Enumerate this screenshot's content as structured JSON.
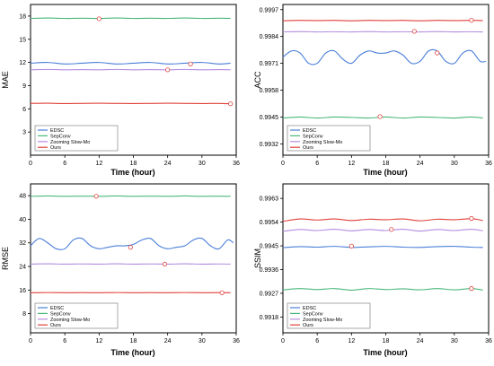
{
  "chart_data": [
    {
      "type": "line",
      "panel": "top-left",
      "ylabel": "MAE",
      "xlabel": "Time (hour)",
      "xlim": [
        0,
        36
      ],
      "ylim": [
        0,
        19.5
      ],
      "xticks": [
        0,
        6,
        12,
        18,
        24,
        30,
        36
      ],
      "yticks": [
        3,
        6,
        9,
        12,
        15,
        18
      ],
      "ytick_labels": [
        "3",
        "6",
        "9",
        "12",
        "15",
        "18"
      ],
      "legend_position": "bottom-left",
      "series": [
        {
          "name": "EDSC",
          "color": "#4a7fd8",
          "x": [
            0,
            3,
            6,
            9,
            12,
            15,
            18,
            21,
            24,
            27,
            30,
            33,
            35
          ],
          "y": [
            11.9,
            12.0,
            11.8,
            11.9,
            12.0,
            11.8,
            11.9,
            12.0,
            11.8,
            11.9,
            12.0,
            11.8,
            11.9
          ],
          "marker": [
            28,
            11.8
          ]
        },
        {
          "name": "SepConv",
          "color": "#4bb87a",
          "x": [
            0,
            3,
            6,
            9,
            12,
            15,
            18,
            21,
            24,
            27,
            30,
            33,
            35
          ],
          "y": [
            17.7,
            17.75,
            17.7,
            17.72,
            17.7,
            17.75,
            17.7,
            17.72,
            17.7,
            17.75,
            17.7,
            17.72,
            17.7
          ],
          "marker": [
            12,
            17.65
          ]
        },
        {
          "name": "Zooming Slow-Mo",
          "color": "#b48de0",
          "x": [
            0,
            3,
            6,
            9,
            12,
            15,
            18,
            21,
            24,
            27,
            30,
            33,
            35
          ],
          "y": [
            11.05,
            11.1,
            11.05,
            11.08,
            11.05,
            11.1,
            11.05,
            11.08,
            11.05,
            11.1,
            11.05,
            11.08,
            11.05
          ],
          "marker": [
            24,
            11.05
          ]
        },
        {
          "name": "Ours",
          "color": "#e0403a",
          "x": [
            0,
            3,
            6,
            9,
            12,
            15,
            18,
            21,
            24,
            27,
            30,
            33,
            35
          ],
          "y": [
            6.7,
            6.72,
            6.68,
            6.7,
            6.72,
            6.7,
            6.68,
            6.7,
            6.72,
            6.7,
            6.68,
            6.7,
            6.65
          ],
          "marker": [
            35,
            6.65
          ]
        }
      ]
    },
    {
      "type": "line",
      "panel": "top-right",
      "ylabel": "ACC",
      "xlabel": "Time (hour)",
      "xlim": [
        0,
        36
      ],
      "ylim": [
        0.99265,
        0.99995
      ],
      "xticks": [
        0,
        6,
        12,
        18,
        24,
        30,
        36
      ],
      "yticks": [
        0.9932,
        0.9945,
        0.9958,
        0.9971,
        0.9984,
        0.9997
      ],
      "ytick_labels": [
        "0.9932",
        "0.9945",
        "0.9958",
        "0.9971",
        "0.9984",
        "0.9997"
      ],
      "legend_position": "bottom-left",
      "series": [
        {
          "name": "EDSC",
          "color": "#4a7fd8",
          "x": [
            0,
            1.5,
            3,
            4.5,
            6,
            7.5,
            9,
            10.5,
            12,
            13.5,
            15,
            16.5,
            18,
            19.5,
            21,
            22.5,
            24,
            25.5,
            27,
            28.5,
            30,
            31.5,
            33,
            34.5,
            35.5
          ],
          "y": [
            0.9974,
            0.9977,
            0.9976,
            0.9971,
            0.9971,
            0.9976,
            0.9977,
            0.9973,
            0.9971,
            0.9975,
            0.9977,
            0.9976,
            0.9976,
            0.9977,
            0.9975,
            0.9971,
            0.9972,
            0.9977,
            0.9977,
            0.9972,
            0.9971,
            0.9976,
            0.9977,
            0.9972,
            0.9972
          ],
          "marker": [
            27,
            0.9976
          ]
        },
        {
          "name": "SepConv",
          "color": "#4bb87a",
          "x": [
            0,
            3,
            6,
            9,
            12,
            15,
            18,
            21,
            24,
            27,
            30,
            33,
            35
          ],
          "y": [
            0.99445,
            0.9945,
            0.99445,
            0.9945,
            0.99448,
            0.99445,
            0.9945,
            0.99445,
            0.9945,
            0.99448,
            0.99445,
            0.9945,
            0.99445
          ],
          "marker": [
            17,
            0.99452
          ]
        },
        {
          "name": "Zooming Slow-Mo",
          "color": "#b48de0",
          "x": [
            0,
            3,
            6,
            9,
            12,
            15,
            18,
            21,
            24,
            27,
            30,
            33,
            35
          ],
          "y": [
            0.99862,
            0.99864,
            0.99862,
            0.99863,
            0.99862,
            0.99864,
            0.99862,
            0.99863,
            0.99862,
            0.99864,
            0.99862,
            0.99863,
            0.99862
          ],
          "marker": [
            23,
            0.99865
          ]
        },
        {
          "name": "Ours",
          "color": "#e0403a",
          "x": [
            0,
            3,
            6,
            9,
            12,
            15,
            18,
            21,
            24,
            27,
            30,
            33,
            35
          ],
          "y": [
            0.99916,
            0.99918,
            0.99917,
            0.99918,
            0.99916,
            0.99918,
            0.99917,
            0.99918,
            0.99916,
            0.99918,
            0.99917,
            0.99918,
            0.99917
          ],
          "marker": [
            33,
            0.99918
          ]
        }
      ]
    },
    {
      "type": "line",
      "panel": "bottom-left",
      "ylabel": "RMSE",
      "xlabel": "Time (hour)",
      "xlim": [
        0,
        36
      ],
      "ylim": [
        1.5,
        52
      ],
      "xticks": [
        0,
        6,
        12,
        18,
        24,
        30,
        36
      ],
      "yticks": [
        8,
        16,
        24,
        32,
        40,
        48
      ],
      "ytick_labels": [
        "8",
        "16",
        "24",
        "32",
        "40",
        "48"
      ],
      "legend_position": "bottom-left",
      "series": [
        {
          "name": "EDSC",
          "color": "#4a7fd8",
          "x": [
            0,
            1.5,
            3,
            4.5,
            6,
            7.5,
            9,
            10.5,
            12,
            13.5,
            15,
            16.5,
            18,
            19.5,
            21,
            22.5,
            24,
            25.5,
            27,
            28.5,
            30,
            31.5,
            33,
            34.5,
            35.5
          ],
          "y": [
            31,
            33.5,
            32,
            30,
            30,
            33,
            33.5,
            31,
            30,
            30.5,
            31,
            31,
            31.5,
            33,
            33.5,
            31,
            30,
            30.5,
            31,
            33,
            33.5,
            31,
            30,
            33,
            32
          ],
          "marker": [
            17.5,
            30.5
          ]
        },
        {
          "name": "SepConv",
          "color": "#4bb87a",
          "x": [
            0,
            3,
            6,
            9,
            12,
            15,
            18,
            21,
            24,
            27,
            30,
            33,
            35
          ],
          "y": [
            47.8,
            47.9,
            47.8,
            47.85,
            47.8,
            47.9,
            47.8,
            47.85,
            47.8,
            47.9,
            47.8,
            47.85,
            47.8
          ],
          "marker": [
            11.5,
            47.8
          ]
        },
        {
          "name": "Zooming Slow-Mo",
          "color": "#b48de0",
          "x": [
            0,
            3,
            6,
            9,
            12,
            15,
            18,
            21,
            24,
            27,
            30,
            33,
            35
          ],
          "y": [
            24.8,
            24.9,
            24.8,
            24.85,
            24.8,
            24.9,
            24.8,
            24.85,
            24.8,
            24.9,
            24.8,
            24.85,
            24.8
          ],
          "marker": [
            23.5,
            24.8
          ]
        },
        {
          "name": "Ours",
          "color": "#e0403a",
          "x": [
            0,
            3,
            6,
            9,
            12,
            15,
            18,
            21,
            24,
            27,
            30,
            33,
            35
          ],
          "y": [
            15.1,
            15.15,
            15.1,
            15.12,
            15.1,
            15.15,
            15.1,
            15.12,
            15.1,
            15.15,
            15.1,
            15.12,
            15.1
          ],
          "marker": [
            33.5,
            15.1
          ]
        }
      ]
    },
    {
      "type": "line",
      "panel": "bottom-right",
      "ylabel": "SSIM",
      "xlabel": "Time (hour)",
      "xlim": [
        0,
        36
      ],
      "ylim": [
        0.9912,
        0.99685
      ],
      "xticks": [
        0,
        6,
        12,
        18,
        24,
        30,
        36
      ],
      "yticks": [
        0.9918,
        0.9927,
        0.9936,
        0.9945,
        0.9954,
        0.9963
      ],
      "ytick_labels": [
        "0.9918",
        "0.9927",
        "0.9936",
        "0.9945",
        "0.9954",
        "0.9963"
      ],
      "legend_position": "bottom-left",
      "series": [
        {
          "name": "EDSC",
          "color": "#4a7fd8",
          "x": [
            0,
            3,
            6,
            9,
            12,
            15,
            18,
            21,
            24,
            27,
            30,
            33,
            35
          ],
          "y": [
            0.99443,
            0.99447,
            0.99445,
            0.99448,
            0.99444,
            0.99446,
            0.99448,
            0.99445,
            0.99444,
            0.99447,
            0.99448,
            0.99445,
            0.99444
          ],
          "marker": [
            12,
            0.99449
          ]
        },
        {
          "name": "SepConv",
          "color": "#4bb87a",
          "x": [
            0,
            3,
            6,
            9,
            12,
            15,
            18,
            21,
            24,
            27,
            30,
            33,
            35
          ],
          "y": [
            0.99283,
            0.99288,
            0.99284,
            0.99288,
            0.99282,
            0.99288,
            0.99284,
            0.99287,
            0.99283,
            0.99288,
            0.99283,
            0.99288,
            0.99282
          ],
          "marker": [
            33,
            0.99288
          ]
        },
        {
          "name": "Zooming Slow-Mo",
          "color": "#b48de0",
          "x": [
            0,
            3,
            6,
            9,
            12,
            15,
            18,
            21,
            24,
            27,
            30,
            33,
            35
          ],
          "y": [
            0.99505,
            0.99512,
            0.99508,
            0.99513,
            0.99507,
            0.99512,
            0.99508,
            0.99513,
            0.99506,
            0.99512,
            0.99508,
            0.99513,
            0.99507
          ],
          "marker": [
            19,
            0.99512
          ]
        },
        {
          "name": "Ours",
          "color": "#e0403a",
          "x": [
            0,
            3,
            6,
            9,
            12,
            15,
            18,
            21,
            24,
            27,
            30,
            33,
            35
          ],
          "y": [
            0.99543,
            0.99552,
            0.99548,
            0.99552,
            0.99546,
            0.99551,
            0.99549,
            0.99552,
            0.99545,
            0.99551,
            0.99549,
            0.99553,
            0.99546
          ],
          "marker": [
            33,
            0.99554
          ]
        }
      ]
    }
  ]
}
